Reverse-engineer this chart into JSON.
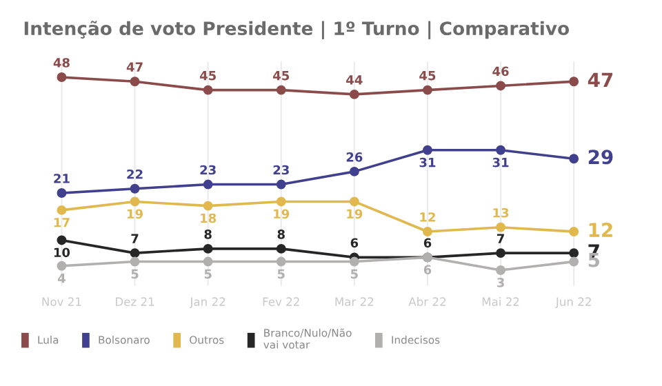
{
  "chart_data": {
    "type": "line",
    "title": "Intenção de voto Presidente | 1º Turno | Comparativo",
    "categories": [
      "Nov 21",
      "Dez 21",
      "Jan 22",
      "Fev 22",
      "Mar 22",
      "Abr 22",
      "Mai 22",
      "Jun 22"
    ],
    "series": [
      {
        "name": "Lula",
        "color": "#8b4b4b",
        "values": [
          48,
          47,
          45,
          45,
          44,
          45,
          46,
          47
        ]
      },
      {
        "name": "Bolsonaro",
        "color": "#40408e",
        "values": [
          21,
          22,
          23,
          23,
          26,
          31,
          31,
          29
        ]
      },
      {
        "name": "Outros",
        "color": "#e0b84e",
        "values": [
          17,
          19,
          18,
          19,
          19,
          12,
          13,
          12
        ]
      },
      {
        "name": "Branco/Nulo/Não\nvai votar",
        "color": "#262626",
        "values": [
          10,
          7,
          8,
          8,
          6,
          6,
          7,
          7
        ]
      },
      {
        "name": "Indecisos",
        "color": "#b2afaf",
        "values": [
          4,
          5,
          5,
          5,
          5,
          6,
          3,
          5
        ]
      }
    ],
    "data_labels": true,
    "marker": "circle",
    "line_style": "solid",
    "grid": "x",
    "legend": "bottom"
  }
}
